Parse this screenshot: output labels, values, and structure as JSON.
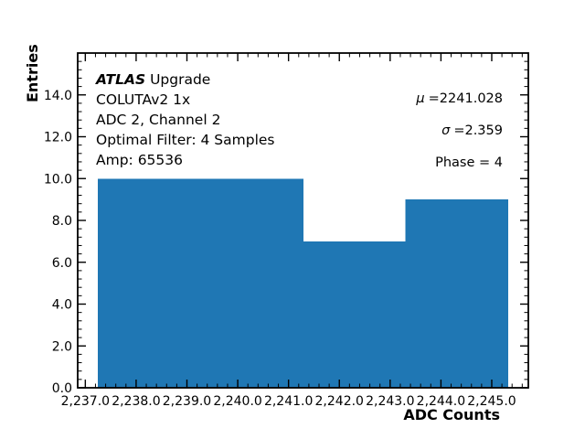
{
  "figure": {
    "background": "#ffffff",
    "annotations": {
      "brand": "ATLAS",
      "brand_rest": "Upgrade",
      "line2": "COLUTAv2 1x",
      "line3": "ADC 2, Channel 2",
      "line4": "Optimal Filter: 4 Samples",
      "line5": "Amp: 65536"
    },
    "stats": {
      "mu_symbol": "μ",
      "mu_value": "=2241.028",
      "sigma_symbol": "σ",
      "sigma_value": "=2.359",
      "phase": "Phase = 4"
    }
  },
  "chart_data": {
    "type": "bar",
    "subtype": "histogram",
    "title": "",
    "xlabel": "ADC Counts",
    "ylabel": "Entries",
    "bar_color": "#1f77b4",
    "axis_color": "#000000",
    "bin_edges": [
      2237.25,
      2239.27,
      2241.29,
      2243.3,
      2245.32
    ],
    "counts": [
      10,
      10,
      7,
      9
    ],
    "xlim": [
      2236.85,
      2245.72
    ],
    "ylim": [
      0,
      16
    ],
    "x_ticks": [
      2237,
      2238,
      2239,
      2240,
      2241,
      2242,
      2243,
      2244,
      2245
    ],
    "x_tick_labels": [
      "2,237.0",
      "2,238.0",
      "2,239.0",
      "2,240.0",
      "2,241.0",
      "2,242.0",
      "2,243.0",
      "2,244.0",
      "2,245.0"
    ],
    "y_ticks": [
      0,
      2,
      4,
      6,
      8,
      10,
      12,
      14
    ],
    "y_tick_labels": [
      "0.0",
      "2.0",
      "4.0",
      "6.0",
      "8.0",
      "10.0",
      "12.0",
      "14.0"
    ],
    "x_minor_step": 0.2,
    "y_minor_step": 0.4,
    "tick_direction": "in",
    "ticks_all_sides": true,
    "grid": false,
    "legend": null
  }
}
